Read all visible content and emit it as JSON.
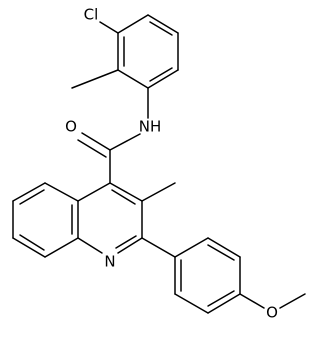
{
  "molecule": {
    "atom_labels": [
      "Cl",
      "NH",
      "O",
      "N",
      "O"
    ]
  }
}
